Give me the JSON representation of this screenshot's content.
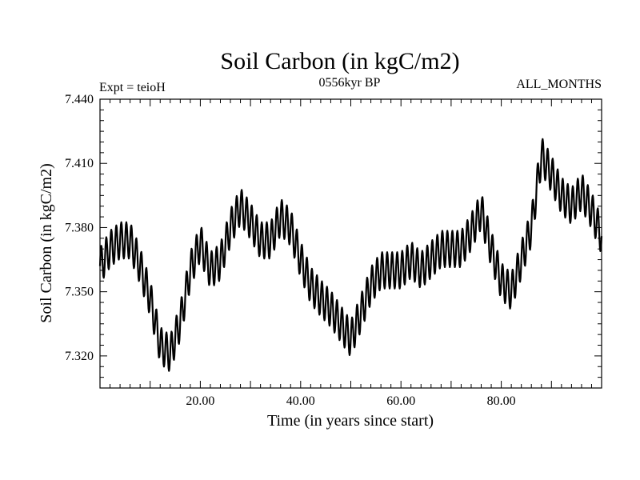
{
  "chart_data": {
    "type": "line",
    "title": "Soil Carbon (in kgC/m2)",
    "subtitle_left": "Expt = teioH",
    "subtitle_center": "0556kyr BP",
    "subtitle_right": "ALL_MONTHS",
    "xlabel": "Time (in years since start)",
    "ylabel": "Soil Carbon (in kgC/m2)",
    "xlim": [
      0,
      100
    ],
    "ylim": [
      7.305,
      7.44
    ],
    "x_ticks": [
      20,
      40,
      60,
      80
    ],
    "x_tick_labels": [
      "20.00",
      "40.00",
      "60.00",
      "80.00"
    ],
    "y_ticks": [
      7.32,
      7.35,
      7.38,
      7.41,
      7.44
    ],
    "y_tick_labels": [
      "7.320",
      "7.350",
      "7.380",
      "7.410",
      "7.440"
    ],
    "grid": false,
    "series": [
      {
        "name": "Soil Carbon",
        "seasonal_amplitude": 0.0085,
        "trend": {
          "x": [
            0,
            2,
            4,
            6,
            8,
            10,
            12,
            14,
            16,
            18,
            20,
            22,
            24,
            26,
            28,
            30,
            32,
            34,
            36,
            38,
            40,
            42,
            44,
            46,
            48,
            50,
            52,
            54,
            56,
            58,
            60,
            62,
            64,
            66,
            68,
            70,
            72,
            74,
            76,
            78,
            80,
            82,
            84,
            86,
            88,
            90,
            92,
            94,
            96,
            98,
            100
          ],
          "y": [
            7.362,
            7.37,
            7.374,
            7.374,
            7.362,
            7.347,
            7.325,
            7.321,
            7.336,
            7.36,
            7.373,
            7.36,
            7.364,
            7.38,
            7.39,
            7.383,
            7.374,
            7.374,
            7.385,
            7.38,
            7.365,
            7.353,
            7.347,
            7.342,
            7.335,
            7.328,
            7.34,
            7.353,
            7.36,
            7.36,
            7.36,
            7.365,
            7.36,
            7.365,
            7.37,
            7.37,
            7.37,
            7.378,
            7.388,
            7.37,
            7.355,
            7.35,
            7.365,
            7.38,
            7.414,
            7.405,
            7.395,
            7.39,
            7.397,
            7.388,
            7.376
          ]
        }
      }
    ]
  }
}
